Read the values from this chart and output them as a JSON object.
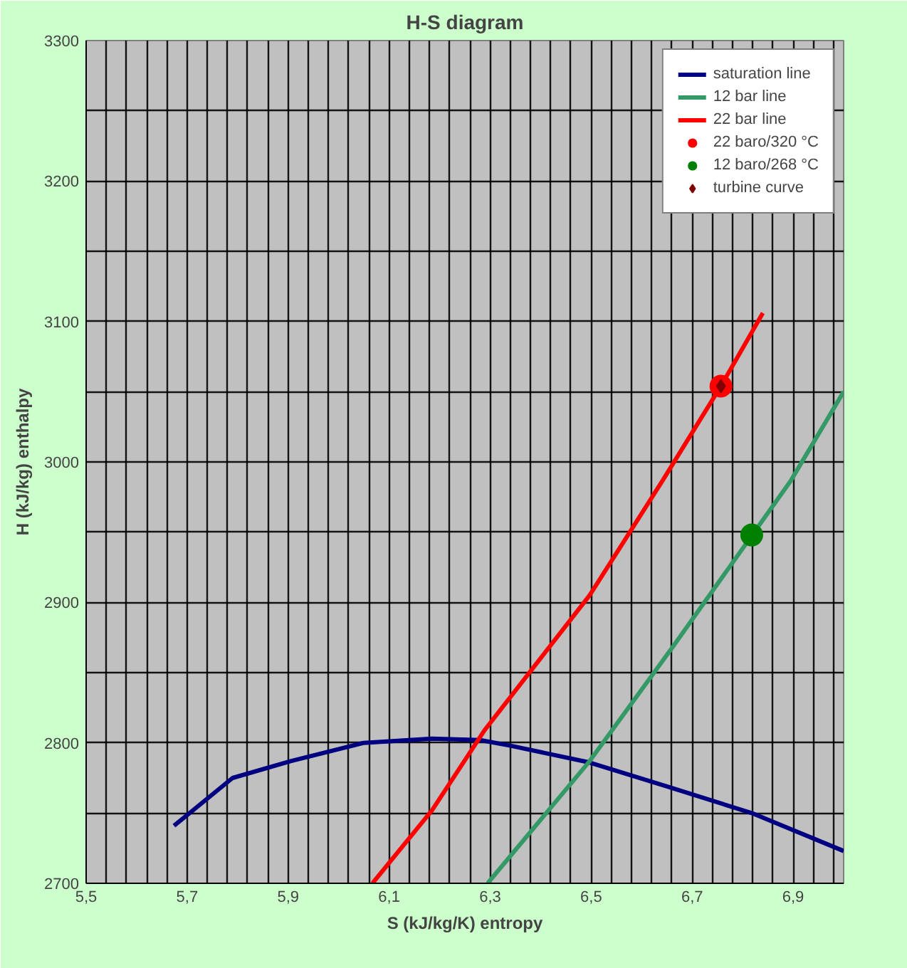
{
  "chart_data": {
    "type": "line",
    "title": "H-S diagram",
    "xlabel": "S (kJ/kg/K) entropy",
    "ylabel": "H (kJ/kg) enthalpy",
    "xlim": [
      5.5,
      7.0
    ],
    "ylim": [
      2700,
      3300
    ],
    "xticks": [
      {
        "value": 5.5,
        "label": "5,5"
      },
      {
        "value": 5.54,
        "label": null
      },
      {
        "value": 5.58,
        "label": null
      },
      {
        "value": 5.62,
        "label": null
      },
      {
        "value": 5.66,
        "label": null
      },
      {
        "value": 5.7,
        "label": "5,7"
      },
      {
        "value": 5.74,
        "label": null
      },
      {
        "value": 5.78,
        "label": null
      },
      {
        "value": 5.82,
        "label": null
      },
      {
        "value": 5.86,
        "label": null
      },
      {
        "value": 5.9,
        "label": "5,9"
      },
      {
        "value": 5.94,
        "label": null
      },
      {
        "value": 5.98,
        "label": null
      },
      {
        "value": 6.02,
        "label": null
      },
      {
        "value": 6.06,
        "label": null
      },
      {
        "value": 6.1,
        "label": "6,1"
      },
      {
        "value": 6.14,
        "label": null
      },
      {
        "value": 6.18,
        "label": null
      },
      {
        "value": 6.22,
        "label": null
      },
      {
        "value": 6.26,
        "label": null
      },
      {
        "value": 6.3,
        "label": "6,3"
      },
      {
        "value": 6.34,
        "label": null
      },
      {
        "value": 6.38,
        "label": null
      },
      {
        "value": 6.42,
        "label": null
      },
      {
        "value": 6.46,
        "label": null
      },
      {
        "value": 6.5,
        "label": "6,5"
      },
      {
        "value": 6.54,
        "label": null
      },
      {
        "value": 6.58,
        "label": null
      },
      {
        "value": 6.62,
        "label": null
      },
      {
        "value": 6.66,
        "label": null
      },
      {
        "value": 6.7,
        "label": "6,7"
      },
      {
        "value": 6.74,
        "label": null
      },
      {
        "value": 6.78,
        "label": null
      },
      {
        "value": 6.82,
        "label": null
      },
      {
        "value": 6.86,
        "label": null
      },
      {
        "value": 6.9,
        "label": "6,9"
      },
      {
        "value": 6.94,
        "label": null
      },
      {
        "value": 6.98,
        "label": null
      }
    ],
    "yticks": [
      2700,
      {
        "value": 2750,
        "label": null
      },
      2800,
      {
        "value": 2850,
        "label": null
      },
      2900,
      {
        "value": 2950,
        "label": null
      },
      3000,
      {
        "value": 3050,
        "label": null
      },
      3100,
      {
        "value": 3150,
        "label": null
      },
      3200,
      {
        "value": 3250,
        "label": null
      },
      3300
    ],
    "grid": true,
    "legend": "top right",
    "series": [
      {
        "name": "saturation line",
        "color": "#000080",
        "x": [
          5.674,
          5.79,
          5.905,
          6.05,
          6.185,
          6.28,
          6.34,
          6.497,
          6.65,
          6.818,
          7.0
        ],
        "values": [
          2741,
          2775,
          2787,
          2800,
          2803,
          2802,
          2798,
          2786,
          2769,
          2750,
          2723
        ]
      },
      {
        "name": "12 bar line",
        "color": "#339966",
        "x": [
          6.295,
          6.497,
          6.663,
          6.896,
          7.0
        ],
        "values": [
          2700,
          2787,
          2869,
          2987,
          3050
        ]
      },
      {
        "name": "22 bar line",
        "color": "#ff0000",
        "x": [
          6.067,
          6.185,
          6.289,
          6.497,
          6.642,
          6.757,
          6.84
        ],
        "values": [
          2700,
          2752,
          2809,
          2905,
          2987,
          3054,
          3106
        ]
      },
      {
        "name": "22 baro/320 °C",
        "type": "scatter",
        "color": "#ff0000",
        "marker": "circle",
        "x": [
          6.757
        ],
        "values": [
          3054
        ]
      },
      {
        "name": "12 baro/268 °C",
        "type": "scatter",
        "color": "#008000",
        "marker": "circle",
        "x": [
          6.818
        ],
        "values": [
          2948
        ]
      },
      {
        "name": "turbine curve",
        "type": "scatter",
        "color": "#800000",
        "marker": "diamond",
        "x": [
          6.757
        ],
        "values": [
          3054
        ]
      }
    ]
  }
}
